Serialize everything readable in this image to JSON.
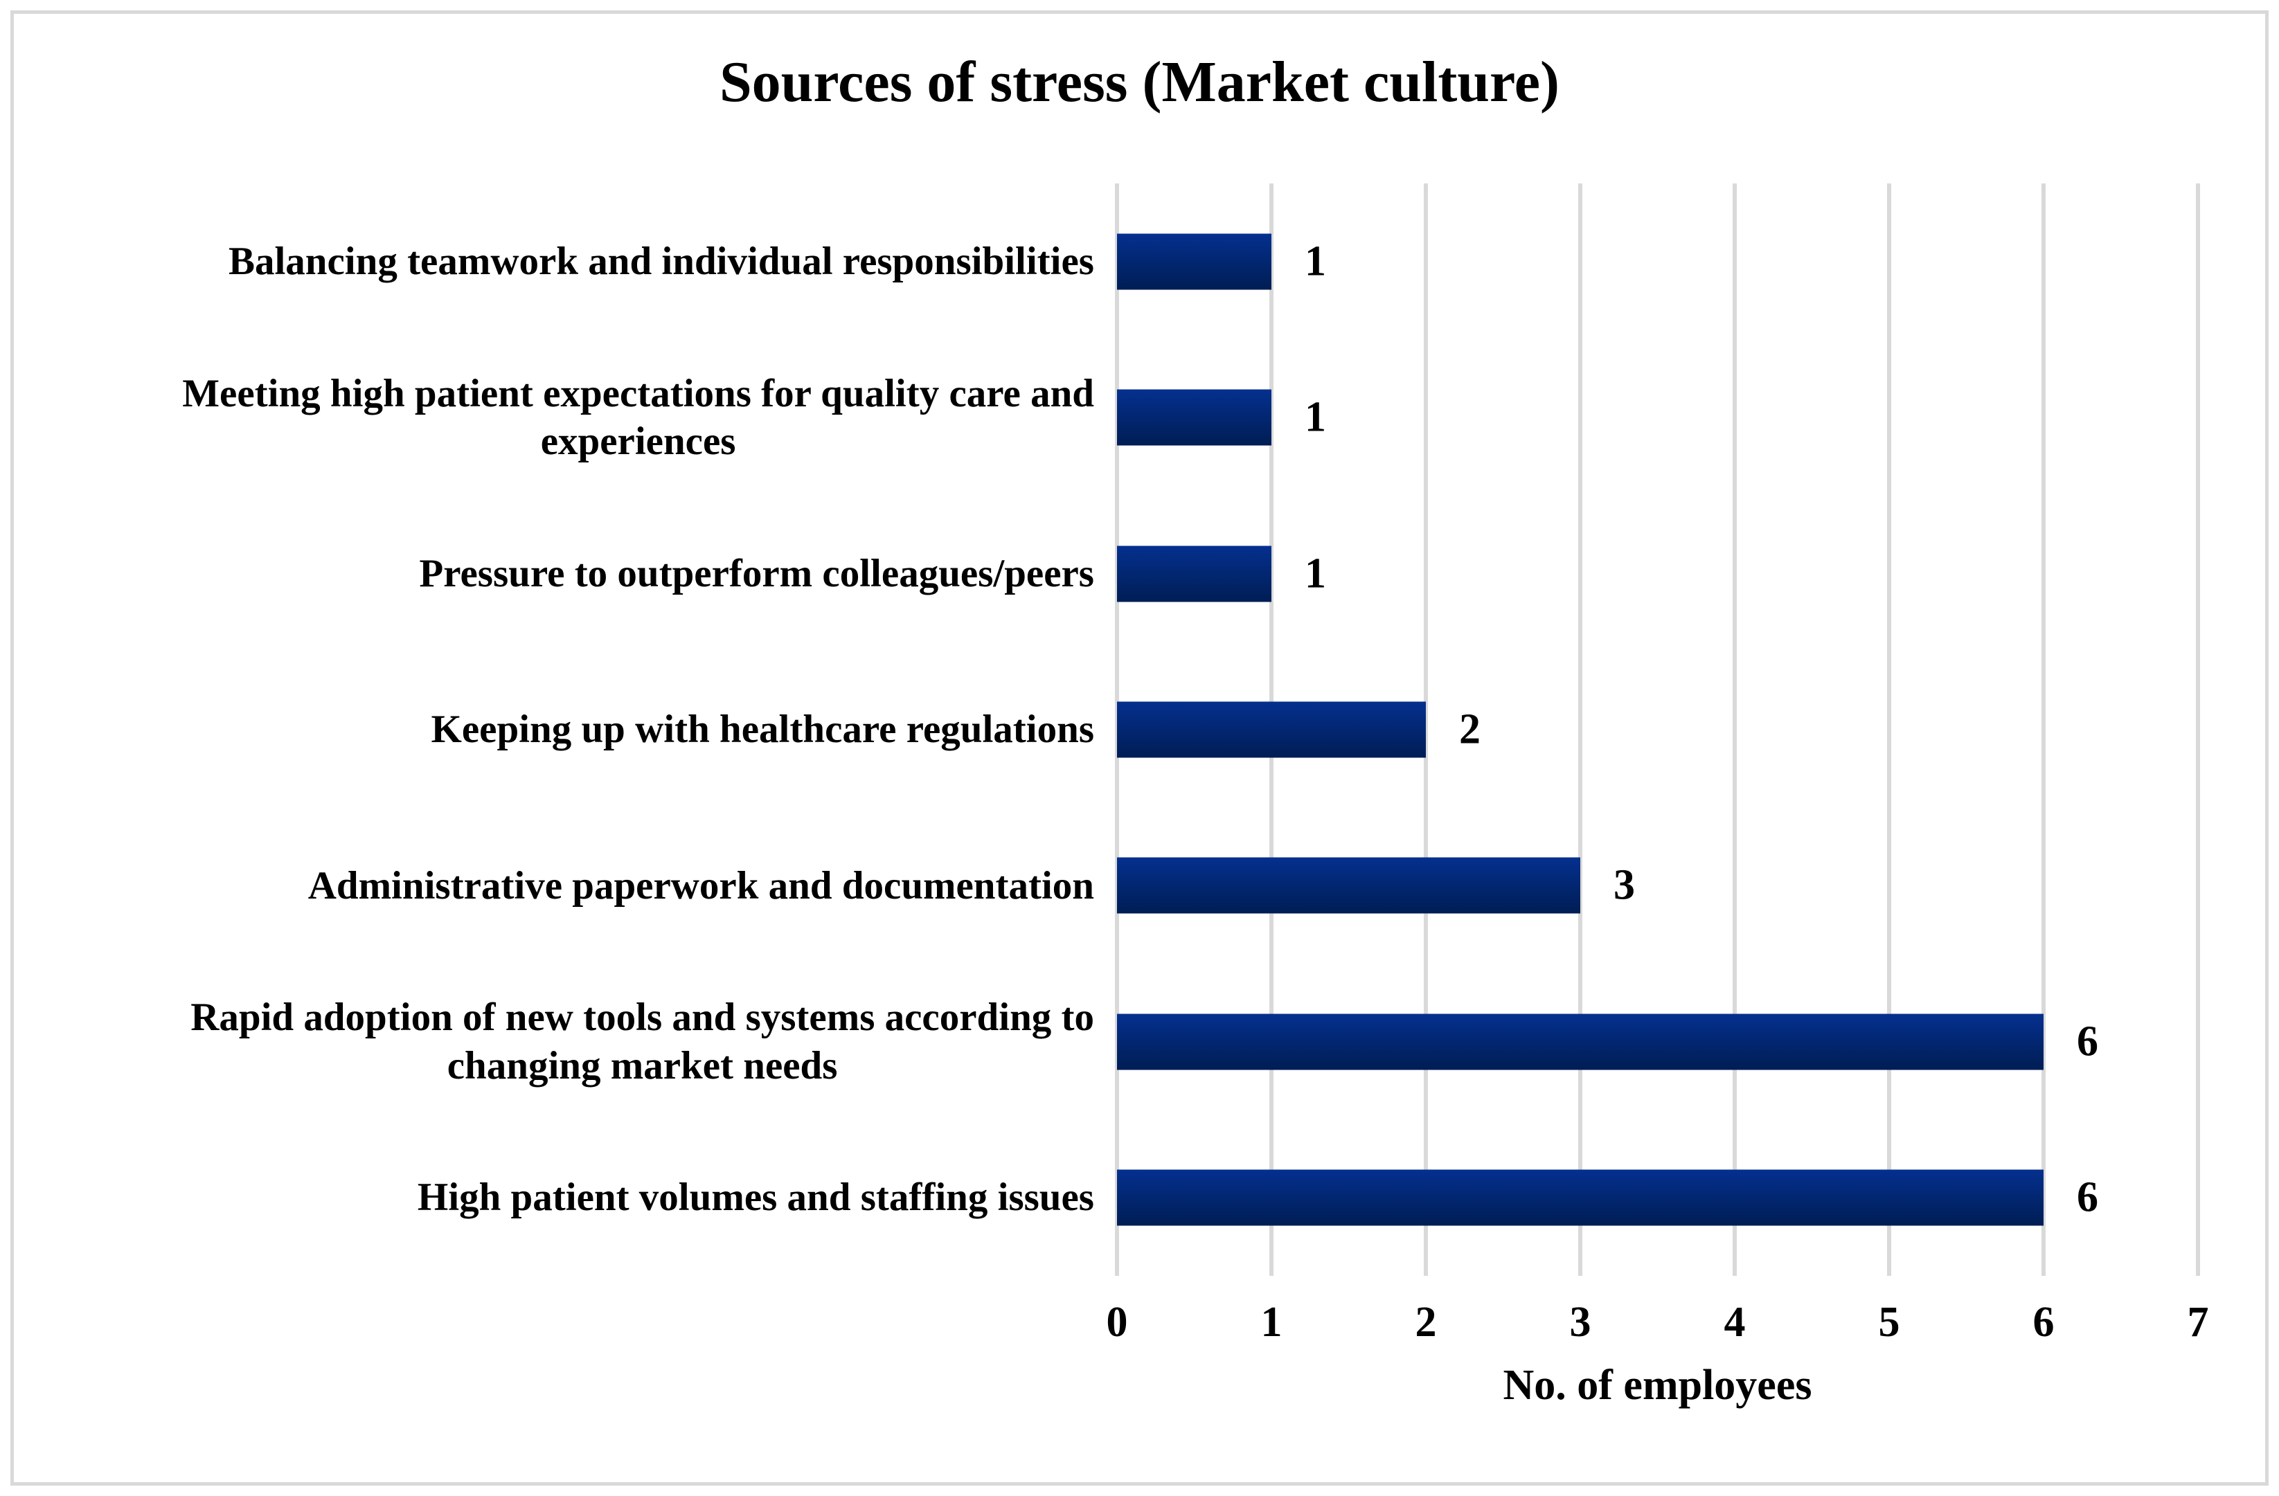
{
  "figure": {
    "border_color": "#d9d9d9",
    "background": "#ffffff"
  },
  "chart_data": {
    "type": "bar",
    "orientation": "horizontal",
    "title": "Sources of stress (Market culture)",
    "xlabel": "No. of employees",
    "categories": [
      "Balancing teamwork and individual responsibilities",
      "Meeting high patient expectations for quality care and\nexperiences",
      "Pressure to outperform colleagues/peers",
      "Keeping up with healthcare regulations",
      "Administrative paperwork and documentation",
      "Rapid adoption of new tools and systems according to\nchanging market needs",
      "High patient volumes and staffing issues"
    ],
    "values": [
      1,
      1,
      1,
      2,
      3,
      6,
      6
    ],
    "data_labels": [
      "1",
      "1",
      "1",
      "2",
      "3",
      "6",
      "6"
    ],
    "xlim": [
      0,
      7
    ],
    "xticks": [
      "0",
      "1",
      "2",
      "3",
      "4",
      "5",
      "6",
      "7"
    ],
    "grid": true,
    "legend": "none",
    "gridline_color": "#d9d9d9",
    "bar_gradient_top": "#04308f",
    "bar_gradient_bottom": "#001d54"
  }
}
